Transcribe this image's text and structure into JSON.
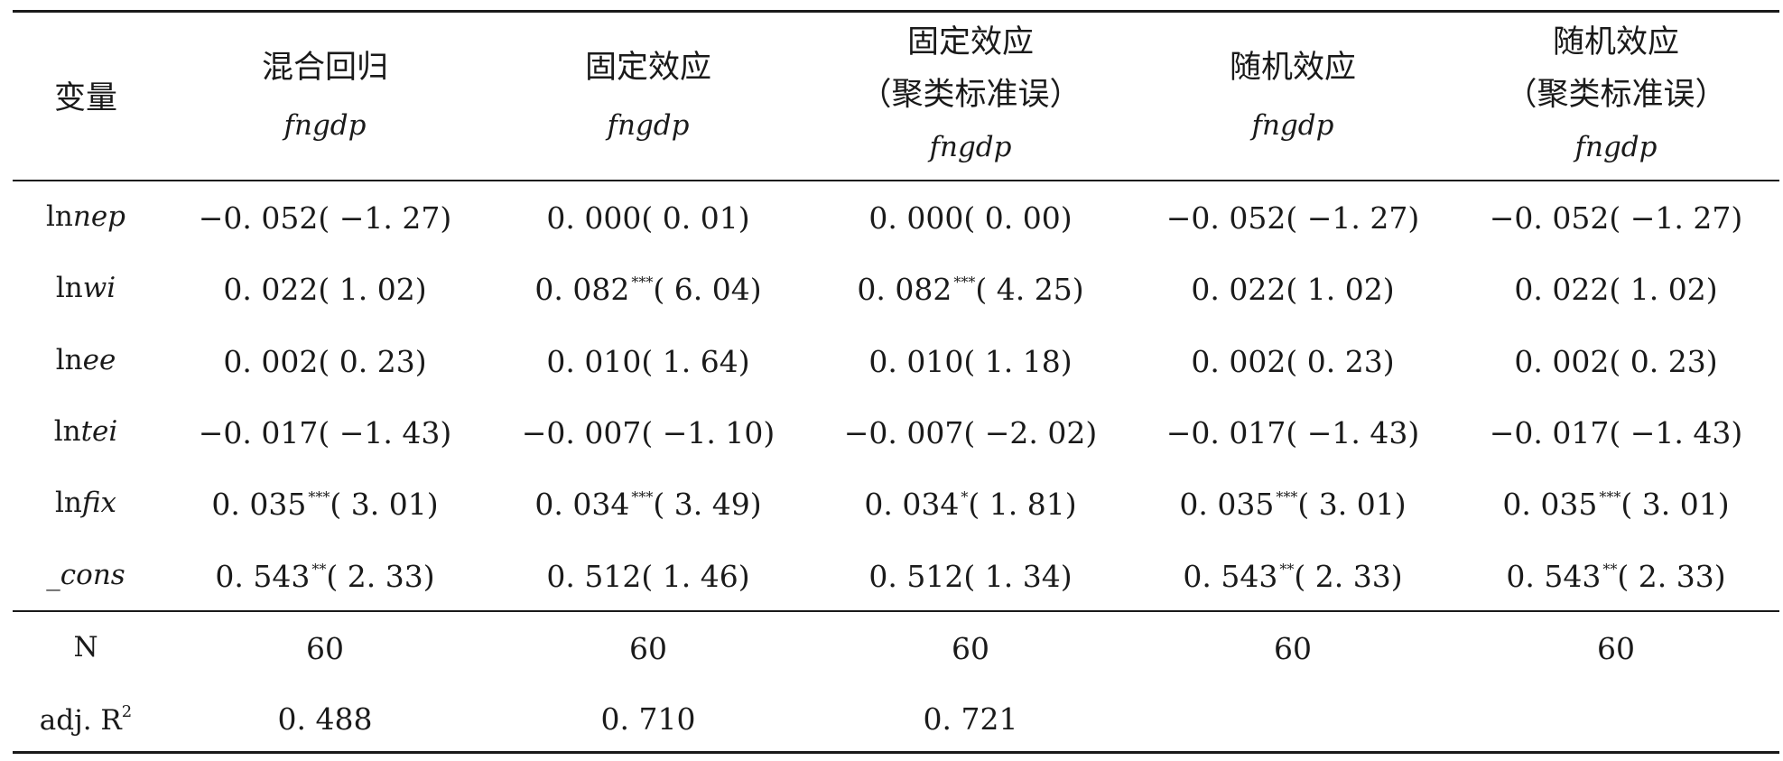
{
  "table": {
    "header": {
      "variable": "变量",
      "columns": [
        {
          "line1": "混合回归",
          "line2": "",
          "dep": "fngdp"
        },
        {
          "line1": "固定效应",
          "line2": "",
          "dep": "fngdp"
        },
        {
          "line1": "固定效应",
          "line2": "（聚类标准误）",
          "dep": "fngdp"
        },
        {
          "line1": "随机效应",
          "line2": "",
          "dep": "fngdp"
        },
        {
          "line1": "随机效应",
          "line2": "（聚类标准误）",
          "dep": "fngdp"
        }
      ]
    },
    "rows": [
      {
        "label_prefix": "ln",
        "label_italic": "nep",
        "cells": [
          {
            "coef": "−0. 052",
            "stars": "",
            "t": "( −1. 27)"
          },
          {
            "coef": "0. 000",
            "stars": "",
            "t": "( 0. 01)"
          },
          {
            "coef": "0. 000",
            "stars": "",
            "t": "( 0. 00)"
          },
          {
            "coef": "−0. 052",
            "stars": "",
            "t": "( −1. 27)"
          },
          {
            "coef": "−0. 052",
            "stars": "",
            "t": "( −1. 27)"
          }
        ]
      },
      {
        "label_prefix": "ln",
        "label_italic": "wi",
        "cells": [
          {
            "coef": "0. 022",
            "stars": "",
            "t": "( 1. 02)"
          },
          {
            "coef": "0. 082",
            "stars": "***",
            "t": "( 6. 04)"
          },
          {
            "coef": "0. 082",
            "stars": "***",
            "t": "( 4. 25)"
          },
          {
            "coef": "0. 022",
            "stars": "",
            "t": "( 1. 02)"
          },
          {
            "coef": "0. 022",
            "stars": "",
            "t": "( 1. 02)"
          }
        ]
      },
      {
        "label_prefix": "ln",
        "label_italic": "ee",
        "cells": [
          {
            "coef": "0. 002",
            "stars": "",
            "t": "( 0. 23)"
          },
          {
            "coef": "0. 010",
            "stars": "",
            "t": "( 1. 64)"
          },
          {
            "coef": "0. 010",
            "stars": "",
            "t": "( 1. 18)"
          },
          {
            "coef": "0. 002",
            "stars": "",
            "t": "( 0. 23)"
          },
          {
            "coef": "0. 002",
            "stars": "",
            "t": "( 0. 23)"
          }
        ]
      },
      {
        "label_prefix": "ln",
        "label_italic": "tei",
        "cells": [
          {
            "coef": "−0. 017",
            "stars": "",
            "t": "( −1. 43)"
          },
          {
            "coef": "−0. 007",
            "stars": "",
            "t": "( −1. 10)"
          },
          {
            "coef": "−0. 007",
            "stars": "",
            "t": "( −2. 02)"
          },
          {
            "coef": "−0. 017",
            "stars": "",
            "t": "( −1. 43)"
          },
          {
            "coef": "−0. 017",
            "stars": "",
            "t": "( −1. 43)"
          }
        ]
      },
      {
        "label_prefix": "ln",
        "label_italic": "fix",
        "cells": [
          {
            "coef": "0. 035",
            "stars": "***",
            "t": "( 3. 01)"
          },
          {
            "coef": "0. 034",
            "stars": "***",
            "t": "( 3. 49)"
          },
          {
            "coef": "0. 034",
            "stars": "*",
            "t": "( 1. 81)"
          },
          {
            "coef": "0. 035",
            "stars": "***",
            "t": "( 3. 01)"
          },
          {
            "coef": "0. 035",
            "stars": "***",
            "t": "( 3. 01)"
          }
        ]
      },
      {
        "label_prefix": "",
        "label_italic": "_cons",
        "cells": [
          {
            "coef": "0. 543",
            "stars": "**",
            "t": "( 2. 33)"
          },
          {
            "coef": "0. 512",
            "stars": "",
            "t": "( 1. 46)"
          },
          {
            "coef": "0. 512",
            "stars": "",
            "t": "( 1. 34)"
          },
          {
            "coef": "0. 543",
            "stars": "**",
            "t": "( 2. 33)"
          },
          {
            "coef": "0. 543",
            "stars": "**",
            "t": "( 2. 33)"
          }
        ]
      }
    ],
    "stats": [
      {
        "label": "N",
        "label_sup": "",
        "values": [
          "60",
          "60",
          "60",
          "60",
          "60"
        ]
      },
      {
        "label": "adj. R",
        "label_sup": "2",
        "values": [
          "0. 488",
          "0. 710",
          "0. 721",
          "",
          ""
        ]
      }
    ]
  }
}
